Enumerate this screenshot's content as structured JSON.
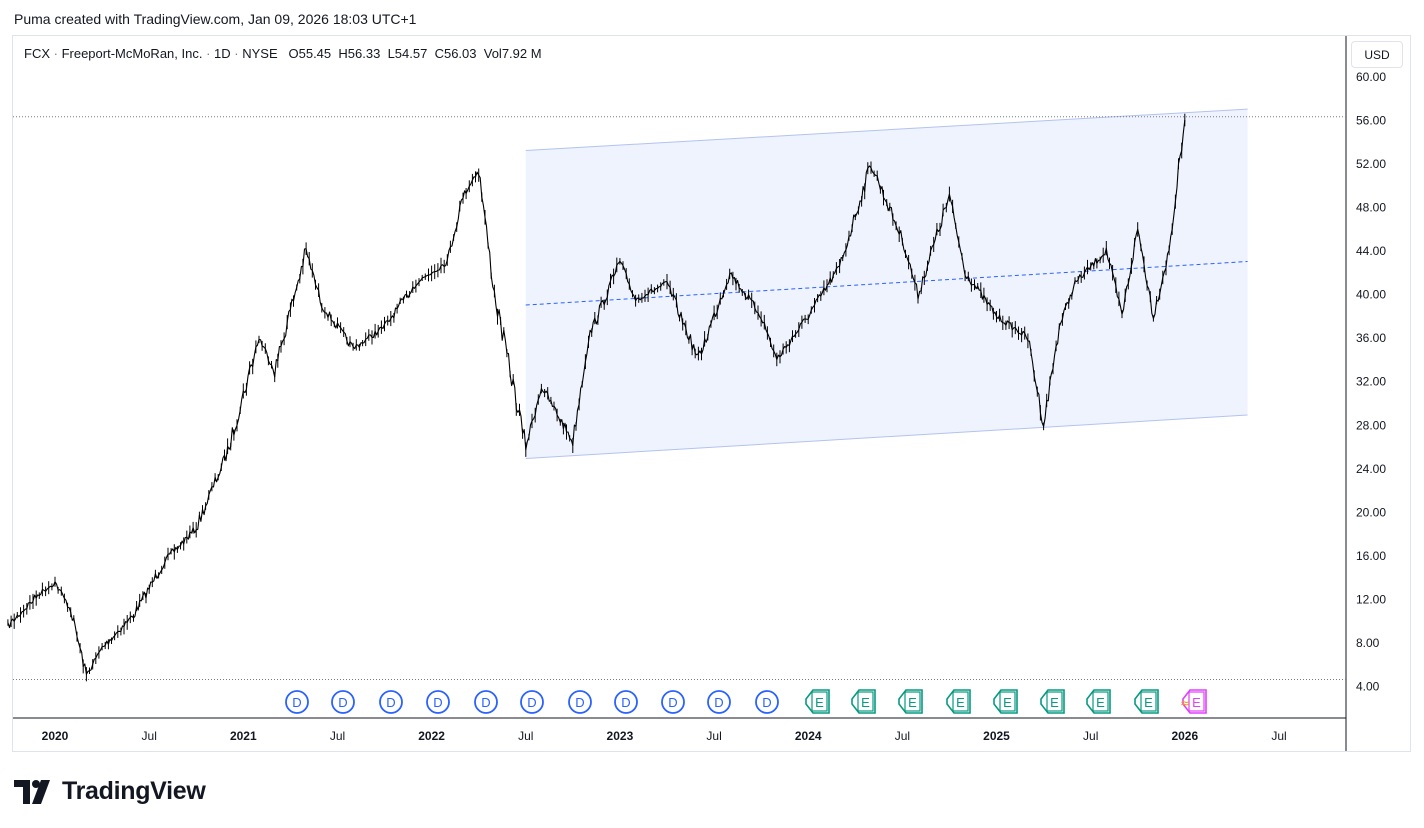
{
  "header": {
    "title": "Puma created with TradingView.com, Jan 09, 2026 18:03 UTC+1"
  },
  "legend": {
    "symbol": "FCX",
    "name": "Freeport-McMoRan, Inc.",
    "interval": "1D",
    "exchange": "NYSE",
    "open_label": "O",
    "open": "55.45",
    "high_label": "H",
    "high": "56.33",
    "low_label": "L",
    "low": "54.57",
    "close_label": "C",
    "close": "56.03",
    "vol_label": "Vol",
    "vol": "7.92 M"
  },
  "currency_button": "USD",
  "brand": {
    "name": "TradingView",
    "logo_icon": "tradingview-logo-icon"
  },
  "colors": {
    "candles": "#000000",
    "channel_fill": "#eff3fd",
    "channel_line": "#b2c3f0",
    "midline": "#2962ff",
    "dividend": "#2962ff",
    "earnings": "#089981",
    "earnings_upcoming": "#e040fb"
  },
  "chart_data": {
    "type": "line",
    "title": "FCX · Freeport-McMoRan, Inc. · 1D · NYSE",
    "ylim": [
      4,
      60
    ],
    "y_ticks": [
      "60.00",
      "56.00",
      "52.00",
      "48.00",
      "44.00",
      "40.00",
      "36.00",
      "32.00",
      "28.00",
      "24.00",
      "20.00",
      "16.00",
      "12.00",
      "8.00",
      "4.00"
    ],
    "x_ticks": [
      "2020",
      "Jul",
      "2021",
      "Jul",
      "2022",
      "Jul",
      "2023",
      "Jul",
      "2024",
      "Jul",
      "2025",
      "Jul",
      "2026",
      "Jul"
    ],
    "grid": false,
    "series": [
      {
        "values_note": "",
        "x": [
          "2019-10",
          "2019-12",
          "2020-01",
          "2020-02",
          "2020-03",
          "2020-04",
          "2020-06",
          "2020-08",
          "2020-10",
          "2020-12",
          "2021-02",
          "2021-03",
          "2021-05",
          "2021-06",
          "2021-08",
          "2021-10",
          "2021-12",
          "2022-02",
          "2022-03",
          "2022-04",
          "2022-05",
          "2022-07",
          "2022-08",
          "2022-10",
          "2022-11",
          "2023-01",
          "2023-02",
          "2023-04",
          "2023-06",
          "2023-08",
          "2023-10",
          "2023-11",
          "2024-01",
          "2024-03",
          "2024-05",
          "2024-07",
          "2024-08",
          "2024-10",
          "2024-11",
          "2025-01",
          "2025-03",
          "2025-04",
          "2025-05",
          "2025-06",
          "2025-08",
          "2025-09",
          "2025-10",
          "2025-11",
          "2025-12",
          "2026-01"
        ],
        "values": [
          9.5,
          12.5,
          13.5,
          11.0,
          5.0,
          7.5,
          10.5,
          15.5,
          18.5,
          25.5,
          36.0,
          33.0,
          44.0,
          39.0,
          35.0,
          37.0,
          41.0,
          43.0,
          49.0,
          51.5,
          40.0,
          26.0,
          31.5,
          26.5,
          36.0,
          43.0,
          39.5,
          41.0,
          34.0,
          42.0,
          38.0,
          34.0,
          38.0,
          42.5,
          52.0,
          45.0,
          40.0,
          49.0,
          42.0,
          38.0,
          36.0,
          28.0,
          37.0,
          41.0,
          44.0,
          38.0,
          46.0,
          38.0,
          44.0,
          56.0
        ]
      }
    ],
    "drawings": {
      "parallel_channel": {
        "start_date": "2022-07",
        "end_date": "2026-05",
        "upper": [
          53.2,
          57.0
        ],
        "lower": [
          24.9,
          28.9
        ],
        "middle": [
          39.0,
          43.0
        ]
      },
      "horizontal_lines": [
        56.3,
        4.6
      ]
    },
    "events": {
      "dividends": {
        "label": "D",
        "count": 11
      },
      "earnings": {
        "label": "E",
        "count": 8
      },
      "upcoming": {
        "label": "E",
        "prefix": "≈"
      }
    }
  }
}
